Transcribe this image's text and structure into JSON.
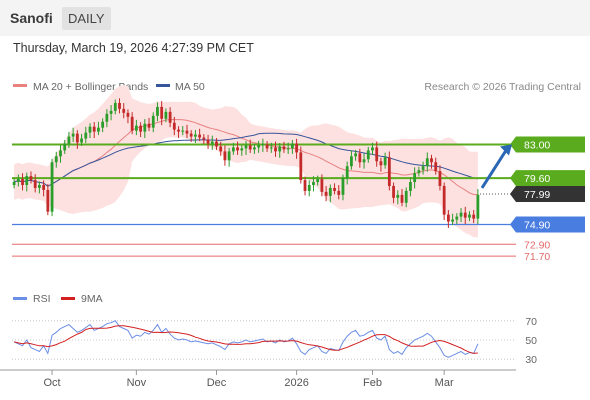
{
  "header": {
    "title": "Sanofi",
    "period": "DAILY",
    "datetime": "Thursday, March 19, 2026 4:27:39 PM CET"
  },
  "legend": {
    "bollinger": "MA 20 + Bollinger Bands",
    "ma50": "MA 50",
    "source": "Research © 2026 Trading Central",
    "rsi": "RSI",
    "rsi_ma": "9MA"
  },
  "colors": {
    "up": "#2a9d2a",
    "down": "#c42a2a",
    "bollinger_band": "#fde0e0",
    "ma20": "#e98080",
    "ma50": "#36559b",
    "resistance": "#5aac1e",
    "pivot": "#4a7de0",
    "support": "#e46a6a",
    "rsi": "#6b8ee6",
    "rsi_ma": "#d32020",
    "last_price": "#333333",
    "arrow": "#2a67b5"
  },
  "chart_data": {
    "type": "candlestick",
    "x_ticks": [
      "Oct",
      "Nov",
      "Dec",
      "2026",
      "Feb",
      "Mar"
    ],
    "y_min": 70.5,
    "y_max": 87.5,
    "levels": [
      {
        "label": "83.00",
        "value": 83.0,
        "kind": "resistance"
      },
      {
        "label": "79.60",
        "value": 79.6,
        "kind": "resistance"
      },
      {
        "label": "77.99",
        "value": 77.99,
        "kind": "last"
      },
      {
        "label": "74.90",
        "value": 74.9,
        "kind": "pivot"
      },
      {
        "label": "72.90",
        "value": 72.9,
        "kind": "support"
      },
      {
        "label": "71.70",
        "value": 71.7,
        "kind": "support"
      }
    ],
    "arrow": {
      "from": 77.99,
      "to": 83.0
    },
    "closes": [
      79.2,
      79.5,
      78.9,
      79.8,
      79.4,
      78.6,
      78.9,
      78.4,
      76.2,
      81.2,
      81.8,
      82.4,
      83.1,
      83.8,
      84.1,
      83.2,
      83.6,
      84.2,
      84.8,
      84.3,
      84.7,
      85.3,
      86.1,
      86.4,
      87.2,
      86.6,
      86.2,
      85.8,
      84.4,
      84.9,
      84.3,
      85.1,
      84.7,
      85.9,
      86.8,
      85.6,
      86.3,
      85.2,
      84.5,
      84.3,
      84.4,
      84.1,
      83.8,
      84.0,
      83.7,
      83.5,
      83.1,
      83.3,
      82.8,
      82.3,
      81.4,
      82.3,
      82.7,
      82.4,
      82.6,
      82.9,
      82.5,
      82.7,
      82.9,
      83.0,
      82.6,
      82.7,
      82.3,
      82.8,
      82.5,
      82.6,
      83.1,
      82.2,
      79.4,
      78.3,
      78.9,
      79.2,
      79.5,
      78.2,
      77.8,
      78.6,
      78.3,
      77.9,
      79.6,
      80.8,
      81.8,
      82.1,
      81.2,
      81.5,
      82.4,
      82.7,
      81.3,
      80.9,
      81.7,
      78.8,
      77.6,
      77.9,
      77.1,
      78.3,
      79.2,
      80.1,
      80.4,
      80.8,
      81.6,
      81.2,
      80.3,
      78.8,
      75.9,
      75.2,
      75.4,
      75.7,
      76.1,
      75.6,
      75.9,
      75.5,
      77.9
    ],
    "rsi": {
      "levels": [
        70,
        50,
        30
      ],
      "values": [
        48,
        46,
        44,
        50,
        42,
        40,
        38,
        44,
        36,
        55,
        58,
        62,
        64,
        66,
        62,
        58,
        60,
        63,
        66,
        60,
        62,
        64,
        67,
        68,
        70,
        64,
        62,
        60,
        52,
        55,
        54,
        58,
        56,
        60,
        66,
        58,
        62,
        56,
        52,
        50,
        51,
        50,
        48,
        49,
        48,
        47,
        46,
        47,
        45,
        43,
        40,
        46,
        48,
        47,
        48,
        50,
        48,
        49,
        50,
        51,
        48,
        49,
        47,
        50,
        48,
        49,
        52,
        46,
        38,
        35,
        40,
        42,
        44,
        38,
        36,
        41,
        40,
        39,
        48,
        54,
        58,
        60,
        54,
        55,
        58,
        60,
        52,
        50,
        54,
        40,
        36,
        38,
        35,
        42,
        46,
        50,
        52,
        54,
        57,
        54,
        48,
        42,
        34,
        32,
        34,
        36,
        38,
        35,
        37,
        36,
        46
      ]
    }
  }
}
